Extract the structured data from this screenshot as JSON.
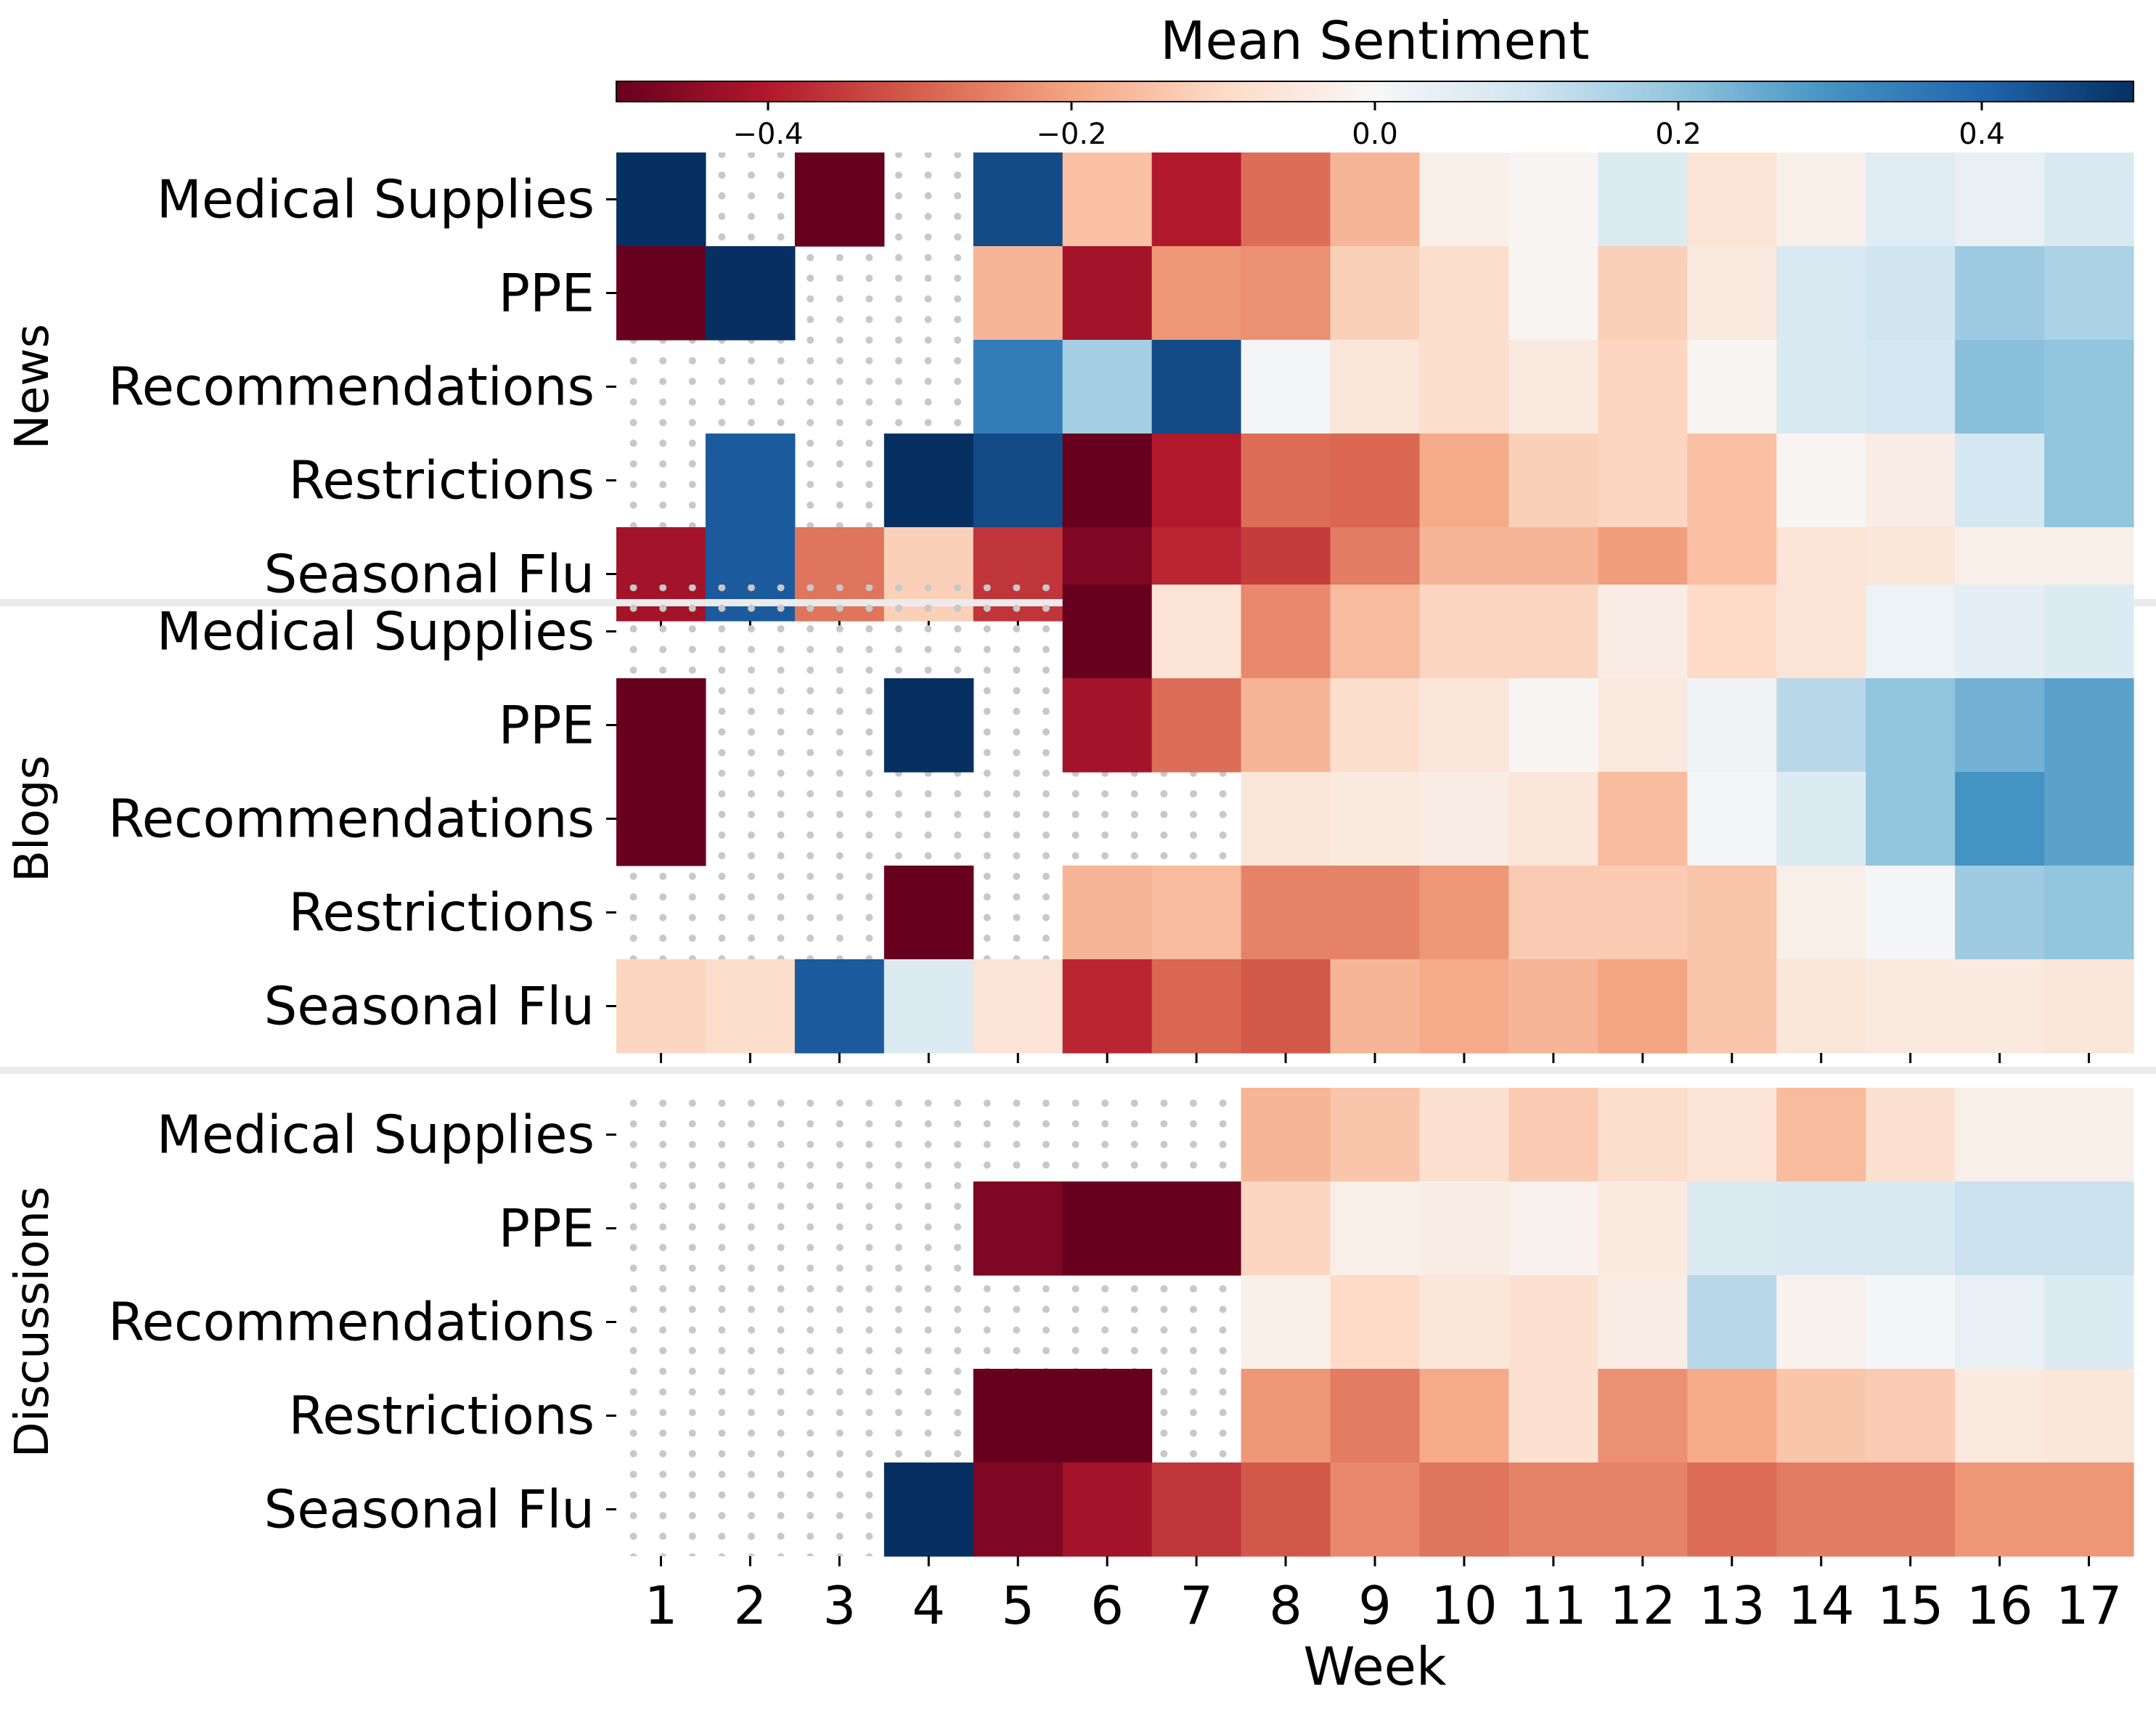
{
  "chart_data": {
    "type": "heatmap",
    "colorbar": {
      "label": "Mean Sentiment",
      "range": [
        -0.5,
        0.5
      ],
      "ticks": [
        -0.4,
        -0.2,
        0.0,
        0.2,
        0.4
      ],
      "tick_labels": [
        "−0.4",
        "−0.2",
        "0.0",
        "0.2",
        "0.4"
      ],
      "colormap": "RdBu",
      "placement": "top"
    },
    "xlabel": "Week",
    "x": [
      "1",
      "2",
      "3",
      "4",
      "5",
      "6",
      "7",
      "8",
      "9",
      "10",
      "11",
      "12",
      "13",
      "14",
      "15",
      "16",
      "17"
    ],
    "rows": [
      "Medical Supplies",
      "PPE",
      "Recommendations",
      "Restrictions",
      "Seasonal Flu"
    ],
    "missing_pattern": "dotted",
    "panels": [
      {
        "name": "News",
        "values": [
          [
            0.5,
            null,
            -0.5,
            null,
            0.45,
            -0.15,
            -0.4,
            -0.28,
            -0.17,
            -0.03,
            -0.01,
            0.07,
            -0.07,
            -0.03,
            0.06,
            0.04,
            0.08
          ],
          [
            -0.5,
            0.5,
            null,
            null,
            -0.17,
            -0.42,
            -0.22,
            -0.23,
            -0.12,
            -0.09,
            -0.01,
            -0.12,
            -0.05,
            0.08,
            0.1,
            0.18,
            0.16
          ],
          [
            null,
            null,
            null,
            null,
            0.35,
            0.17,
            0.45,
            0.01,
            -0.06,
            -0.09,
            -0.05,
            -0.11,
            -0.01,
            0.08,
            0.09,
            0.21,
            0.2
          ],
          [
            null,
            0.42,
            null,
            0.5,
            0.45,
            -0.5,
            -0.4,
            -0.28,
            -0.29,
            -0.19,
            -0.12,
            -0.11,
            -0.15,
            -0.01,
            -0.04,
            0.09,
            0.2
          ],
          [
            -0.42,
            0.42,
            -0.27,
            -0.12,
            -0.36,
            -0.47,
            -0.38,
            -0.35,
            -0.26,
            -0.17,
            -0.17,
            -0.21,
            -0.15,
            -0.07,
            -0.06,
            -0.03,
            -0.03
          ]
        ]
      },
      {
        "name": "Blogs",
        "values": [
          [
            null,
            null,
            null,
            null,
            null,
            -0.5,
            -0.07,
            -0.24,
            -0.16,
            -0.11,
            -0.11,
            -0.04,
            -0.1,
            -0.07,
            0.03,
            0.05,
            0.07
          ],
          [
            -0.5,
            null,
            null,
            0.5,
            null,
            -0.42,
            -0.28,
            -0.17,
            -0.09,
            -0.06,
            -0.01,
            -0.05,
            0.02,
            0.14,
            0.2,
            0.24,
            0.27
          ],
          [
            -0.5,
            null,
            null,
            null,
            null,
            null,
            null,
            -0.06,
            -0.05,
            -0.04,
            -0.06,
            -0.16,
            0.01,
            0.07,
            0.2,
            0.3,
            0.27
          ],
          [
            null,
            null,
            null,
            -0.5,
            null,
            -0.17,
            -0.16,
            -0.25,
            -0.25,
            -0.22,
            -0.13,
            -0.13,
            -0.14,
            -0.03,
            0.01,
            0.18,
            0.2
          ],
          [
            -0.11,
            -0.09,
            0.42,
            0.07,
            -0.07,
            -0.38,
            -0.29,
            -0.31,
            -0.17,
            -0.19,
            -0.17,
            -0.2,
            -0.14,
            -0.06,
            -0.05,
            -0.05,
            -0.06
          ]
        ]
      },
      {
        "name": "Discussions",
        "values": [
          [
            null,
            null,
            null,
            null,
            null,
            null,
            null,
            -0.17,
            -0.14,
            -0.08,
            -0.13,
            -0.09,
            -0.07,
            -0.16,
            -0.08,
            -0.03,
            -0.03
          ],
          [
            null,
            null,
            null,
            null,
            -0.47,
            -0.5,
            -0.5,
            -0.11,
            -0.03,
            -0.04,
            -0.02,
            -0.05,
            0.07,
            0.08,
            0.08,
            0.11,
            0.11
          ],
          [
            null,
            null,
            null,
            null,
            null,
            null,
            null,
            -0.03,
            -0.1,
            -0.06,
            -0.08,
            -0.04,
            0.14,
            -0.02,
            0.01,
            0.04,
            0.07
          ],
          [
            null,
            null,
            null,
            null,
            -0.5,
            -0.5,
            null,
            -0.22,
            -0.26,
            -0.19,
            -0.08,
            -0.23,
            -0.19,
            -0.14,
            -0.13,
            -0.05,
            -0.06
          ],
          [
            null,
            null,
            null,
            0.5,
            -0.47,
            -0.42,
            -0.36,
            -0.31,
            -0.24,
            -0.27,
            -0.25,
            -0.25,
            -0.28,
            -0.26,
            -0.26,
            -0.22,
            -0.22
          ]
        ]
      }
    ]
  }
}
